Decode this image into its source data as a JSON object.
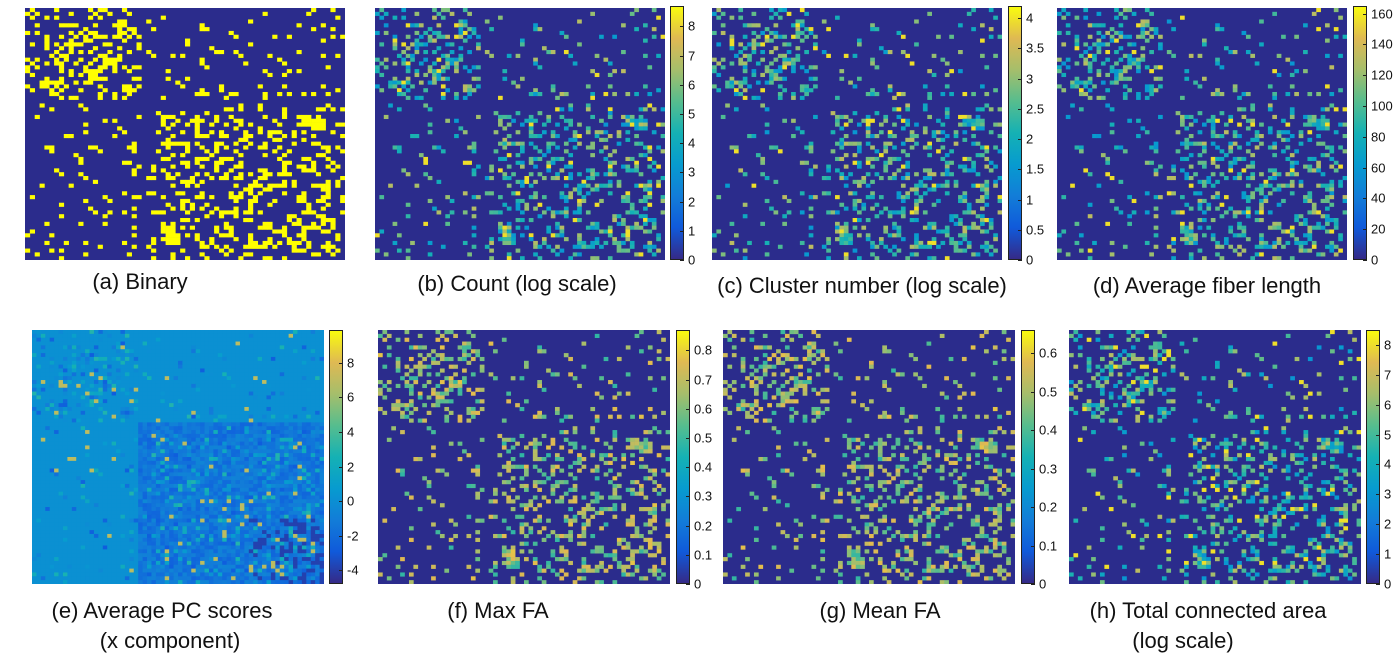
{
  "chart_data": [
    {
      "type": "heatmap",
      "caption": [
        "(a)  Binary"
      ],
      "colorbar": null,
      "colormap": "binary"
    },
    {
      "type": "heatmap",
      "caption": [
        "(b)  Count (log scale)"
      ],
      "colorbar": {
        "min": 0,
        "max": 8.7,
        "ticks": [
          "0",
          "1",
          "2",
          "3",
          "4",
          "5",
          "6",
          "7",
          "8"
        ]
      },
      "colormap": "parula"
    },
    {
      "type": "heatmap",
      "caption": [
        "(c)  Cluster number (log scale)"
      ],
      "colorbar": {
        "min": 0,
        "max": 4.2,
        "ticks": [
          "0",
          "0.5",
          "1",
          "1.5",
          "2",
          "2.5",
          "3",
          "3.5",
          "4"
        ]
      },
      "colormap": "parula"
    },
    {
      "type": "heatmap",
      "caption": [
        "(d)  Average fiber length"
      ],
      "colorbar": {
        "min": 0,
        "max": 165,
        "ticks": [
          "0",
          "20",
          "40",
          "60",
          "80",
          "100",
          "120",
          "140",
          "160"
        ]
      },
      "colormap": "parula"
    },
    {
      "type": "heatmap",
      "caption": [
        "(e) Average PC scores",
        "(x component)"
      ],
      "colorbar": {
        "min": -4.8,
        "max": 9.9,
        "ticks": [
          "-4",
          "-2",
          "0",
          "2",
          "4",
          "6",
          "8"
        ]
      },
      "colormap": "parula"
    },
    {
      "type": "heatmap",
      "caption": [
        "(f) Max FA"
      ],
      "colorbar": {
        "min": 0,
        "max": 0.87,
        "ticks": [
          "0",
          "0.1",
          "0.2",
          "0.3",
          "0.4",
          "0.5",
          "0.6",
          "0.7",
          "0.8"
        ]
      },
      "colormap": "parula"
    },
    {
      "type": "heatmap",
      "caption": [
        "(g) Mean FA"
      ],
      "colorbar": {
        "min": 0,
        "max": 0.66,
        "ticks": [
          "0",
          "0.1",
          "0.2",
          "0.3",
          "0.4",
          "0.5",
          "0.6"
        ]
      },
      "colormap": "parula"
    },
    {
      "type": "heatmap",
      "caption": [
        "(h) Total connected area",
        "(log scale)"
      ],
      "colorbar": {
        "min": 0,
        "max": 8.5,
        "ticks": [
          "0",
          "1",
          "2",
          "3",
          "4",
          "5",
          "6",
          "7",
          "8"
        ]
      },
      "colormap": "parula"
    }
  ],
  "colors": {
    "background": "#2b2c8c",
    "binary_on": "#ffff00",
    "parula_low": "#352a87",
    "parula_mid": "#21b2a5",
    "parula_high": "#f9fb0e"
  }
}
